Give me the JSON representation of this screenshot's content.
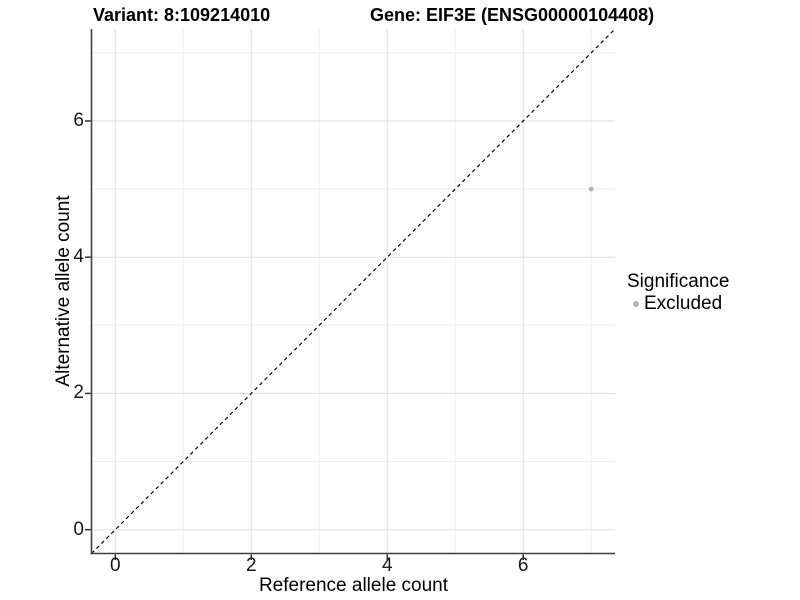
{
  "figure": {
    "title_left": "Variant: 8:109214010",
    "title_right": "Gene: EIF3E (ENSG00000104408)"
  },
  "legend": {
    "title": "Significance",
    "items": [
      {
        "label": "Excluded",
        "color": "#b3b3b3"
      }
    ]
  },
  "chart_data": {
    "type": "scatter",
    "title_left": "Variant: 8:109214010",
    "title_right": "Gene: EIF3E (ENSG00000104408)",
    "xlabel": "Reference allele count",
    "ylabel": "Alternative allele count",
    "xlim": [
      -0.35,
      7.35
    ],
    "ylim": [
      -0.35,
      7.35
    ],
    "x_ticks": [
      0,
      2,
      4,
      6
    ],
    "y_ticks": [
      0,
      2,
      4,
      6
    ],
    "x_minor_gridlines": [
      1,
      3,
      5,
      7
    ],
    "y_minor_gridlines": [
      1,
      3,
      5,
      7
    ],
    "grid": "major and minor, light gray on white",
    "legend_position": "right",
    "identity_line": {
      "style": "dashed",
      "x1": -0.35,
      "y1": -0.35,
      "x2": 7.35,
      "y2": 7.35
    },
    "series": [
      {
        "name": "Excluded",
        "color": "#b3b3b3",
        "points": [
          {
            "x": 7,
            "y": 5
          }
        ]
      }
    ]
  },
  "colors": {
    "grid_major": "#e2e2e2",
    "grid_minor": "#ededed",
    "axis_line": "#3f3f3f",
    "tick_mark": "#333333",
    "tick_label": "#1a1a1a",
    "dashed_line": "#000000",
    "point_excluded": "#b3b3b3"
  }
}
